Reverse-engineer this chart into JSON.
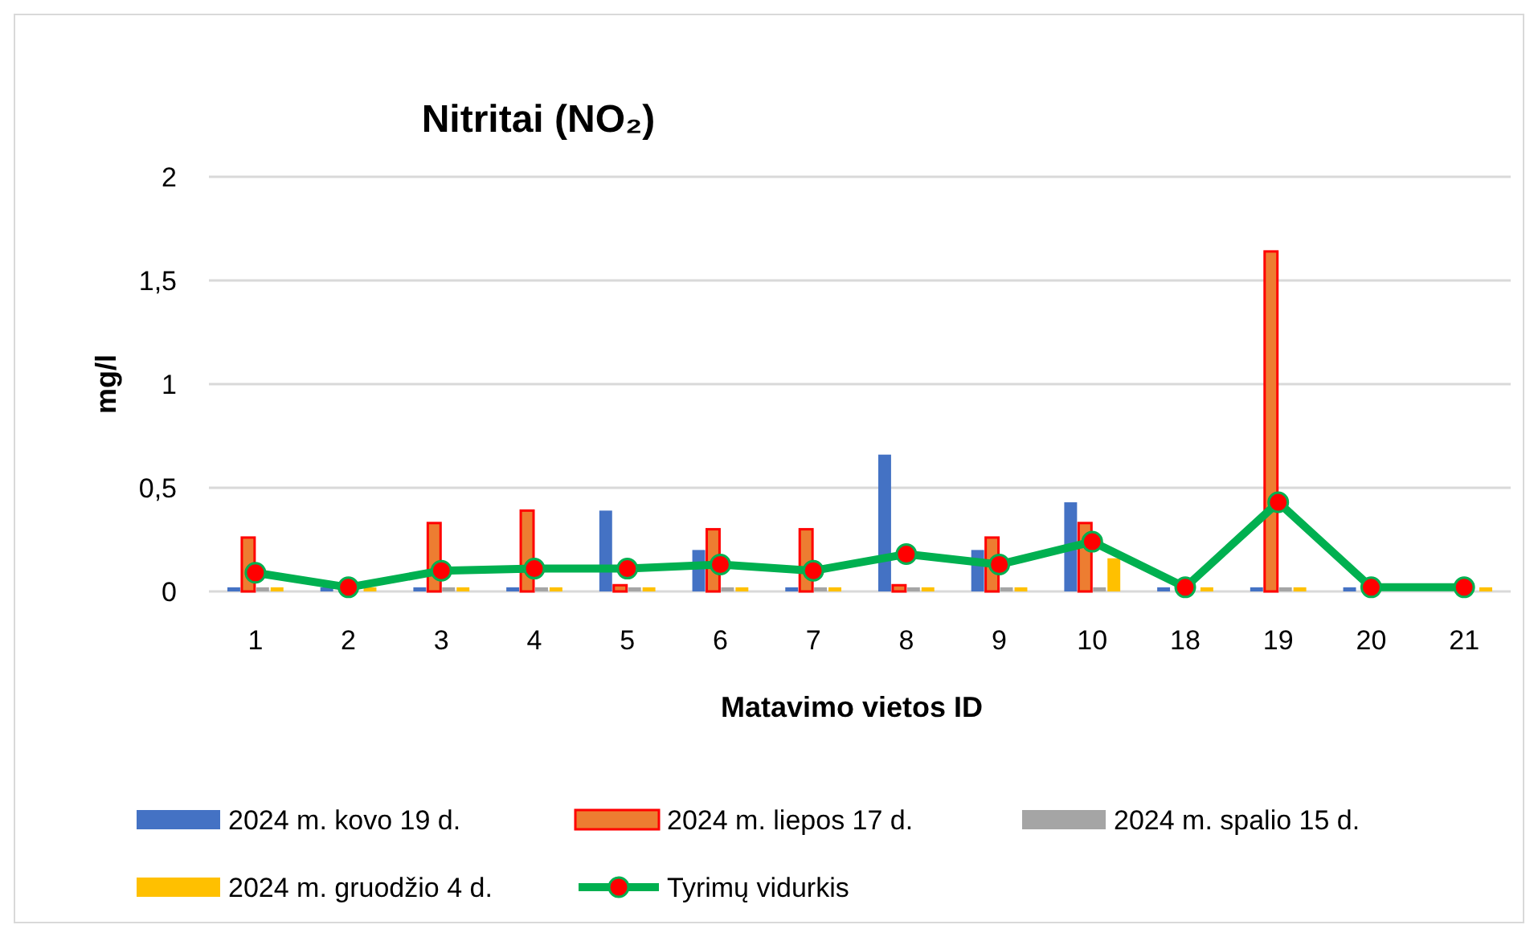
{
  "chart_data": {
    "type": "bar",
    "title": "Nitritai (NO₂)",
    "xlabel": "Matavimo vietos ID",
    "ylabel": "mg/l",
    "categories": [
      "1",
      "2",
      "3",
      "4",
      "5",
      "6",
      "7",
      "8",
      "9",
      "10",
      "18",
      "19",
      "20",
      "21"
    ],
    "series": [
      {
        "name": "2024 m. kovo 19 d.",
        "color": "#4472c4",
        "values": [
          0.02,
          0.02,
          0.02,
          0.02,
          0.39,
          0.2,
          0.02,
          0.66,
          0.2,
          0.43,
          0.02,
          0.02,
          0.02,
          null
        ]
      },
      {
        "name": "2024 m. liepos 17 d.",
        "color": "#ed7d31",
        "values": [
          0.26,
          null,
          0.33,
          0.39,
          0.03,
          0.3,
          0.3,
          0.03,
          0.26,
          0.33,
          null,
          1.64,
          null,
          null
        ]
      },
      {
        "name": "2024 m. spalio 15 d.",
        "color": "#a5a5a5",
        "values": [
          0.02,
          null,
          0.02,
          0.02,
          0.02,
          0.02,
          0.02,
          0.02,
          0.02,
          0.02,
          null,
          0.02,
          null,
          null
        ]
      },
      {
        "name": "2024 m. gruodžio 4 d.",
        "color": "#ffc000",
        "values": [
          0.02,
          0.02,
          0.02,
          0.02,
          0.02,
          0.02,
          0.02,
          0.02,
          0.02,
          0.16,
          0.02,
          0.02,
          null,
          0.02
        ]
      },
      {
        "name": "Tyrimų vidurkis",
        "type": "line",
        "color": "#00b050",
        "marker": "circle",
        "values": [
          0.09,
          0.02,
          0.1,
          0.11,
          0.11,
          0.13,
          0.1,
          0.18,
          0.13,
          0.24,
          0.02,
          0.43,
          0.02,
          0.02
        ]
      }
    ],
    "ylim": [
      0,
      2
    ],
    "yticks": [
      0,
      {
        "value": 0.5,
        "label": "0,5"
      },
      1,
      {
        "value": 1.5,
        "label": "1,5"
      },
      2
    ],
    "grid": "y",
    "legend": "bottom"
  }
}
